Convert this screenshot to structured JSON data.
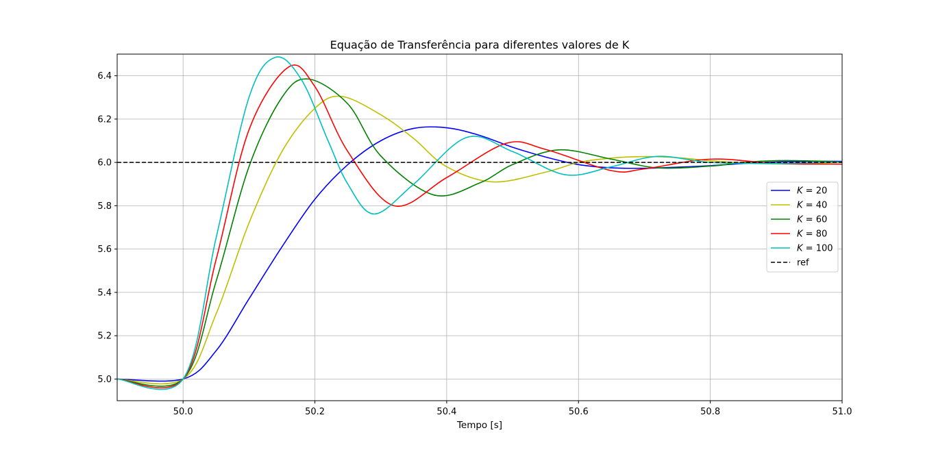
{
  "chart_data": {
    "type": "line",
    "title": "Equação de Transferência para diferentes valores de K",
    "xlabel": "Tempo [s]",
    "ylabel": "",
    "xlim": [
      49.9,
      51.0
    ],
    "ylim": [
      4.9,
      6.5
    ],
    "xticks": [
      "50.0",
      "50.2",
      "50.4",
      "50.6",
      "50.8",
      "51.0"
    ],
    "yticks": [
      "5.0",
      "5.2",
      "5.4",
      "5.6",
      "5.8",
      "6.0",
      "6.2",
      "6.4"
    ],
    "grid": true,
    "legend_position": "center-right",
    "step": {
      "time": 50.0,
      "initial": 5.0,
      "final": 6.0
    },
    "series": [
      {
        "name": "K = 20",
        "legend_var": "K",
        "legend_value": "20",
        "color": "#0000ff",
        "style": "solid",
        "x": [
          49.9,
          50.0,
          50.05,
          50.1,
          50.15,
          50.2,
          50.25,
          50.3,
          50.35,
          50.4,
          50.45,
          50.5,
          50.55,
          50.6,
          50.65,
          50.7,
          50.75,
          50.8,
          50.85,
          50.9,
          50.95,
          51.0
        ],
        "values": [
          5.0,
          5.0,
          5.13,
          5.37,
          5.61,
          5.83,
          5.99,
          6.1,
          6.157,
          6.16,
          6.125,
          6.07,
          6.025,
          5.99,
          5.975,
          5.973,
          5.978,
          5.985,
          5.995,
          6.002,
          6.005,
          6.005
        ]
      },
      {
        "name": "K = 40",
        "legend_var": "K",
        "legend_value": "40",
        "color": "#bfbf00",
        "style": "solid",
        "x": [
          49.9,
          50.0,
          50.05,
          50.1,
          50.15,
          50.2,
          50.24,
          50.3,
          50.35,
          50.4,
          50.47,
          50.55,
          50.6,
          50.65,
          50.7,
          50.75,
          50.8,
          50.85,
          50.9,
          50.95,
          51.0
        ],
        "values": [
          5.0,
          5.0,
          5.3,
          5.72,
          6.05,
          6.25,
          6.305,
          6.22,
          6.11,
          5.98,
          5.91,
          5.955,
          6.0,
          6.02,
          6.027,
          6.022,
          6.008,
          5.998,
          5.993,
          5.995,
          6.0
        ]
      },
      {
        "name": "K = 60",
        "legend_var": "K",
        "legend_value": "60",
        "color": "#008000",
        "style": "solid",
        "x": [
          49.9,
          50.0,
          50.05,
          50.1,
          50.15,
          50.19,
          50.25,
          50.3,
          50.38,
          50.45,
          50.5,
          50.57,
          50.65,
          50.72,
          50.8,
          50.85,
          50.9,
          50.95,
          51.0
        ],
        "values": [
          5.0,
          5.0,
          5.45,
          5.98,
          6.3,
          6.385,
          6.27,
          6.03,
          5.85,
          5.905,
          5.99,
          6.058,
          6.015,
          5.975,
          5.983,
          6.0,
          6.008,
          6.007,
          6.002
        ]
      },
      {
        "name": "K = 80",
        "legend_var": "K",
        "legend_value": "80",
        "color": "#ff0000",
        "style": "solid",
        "x": [
          49.9,
          50.0,
          50.05,
          50.1,
          50.16,
          50.2,
          50.25,
          50.32,
          50.4,
          50.49,
          50.55,
          50.65,
          50.7,
          50.8,
          50.9,
          51.0
        ],
        "values": [
          5.0,
          5.0,
          5.55,
          6.15,
          6.44,
          6.35,
          6.05,
          5.8,
          5.93,
          6.088,
          6.06,
          5.962,
          5.97,
          6.015,
          5.995,
          5.992
        ]
      },
      {
        "name": "K = 100",
        "legend_var": "K",
        "legend_value": "100",
        "color": "#00bfbf",
        "style": "solid",
        "x": [
          49.9,
          50.0,
          50.05,
          50.1,
          50.14,
          50.18,
          50.22,
          50.25,
          50.29,
          50.35,
          50.43,
          50.5,
          50.58,
          50.65,
          50.72,
          50.8,
          50.9,
          51.0
        ],
        "values": [
          5.0,
          5.0,
          5.65,
          6.3,
          6.485,
          6.38,
          6.1,
          5.9,
          5.762,
          5.9,
          6.115,
          6.05,
          5.943,
          5.98,
          6.028,
          6.0,
          5.995,
          6.002
        ]
      },
      {
        "name": "ref",
        "color": "#000000",
        "style": "dashed",
        "x": [
          49.9,
          51.0
        ],
        "values": [
          6.0,
          6.0
        ]
      }
    ]
  }
}
